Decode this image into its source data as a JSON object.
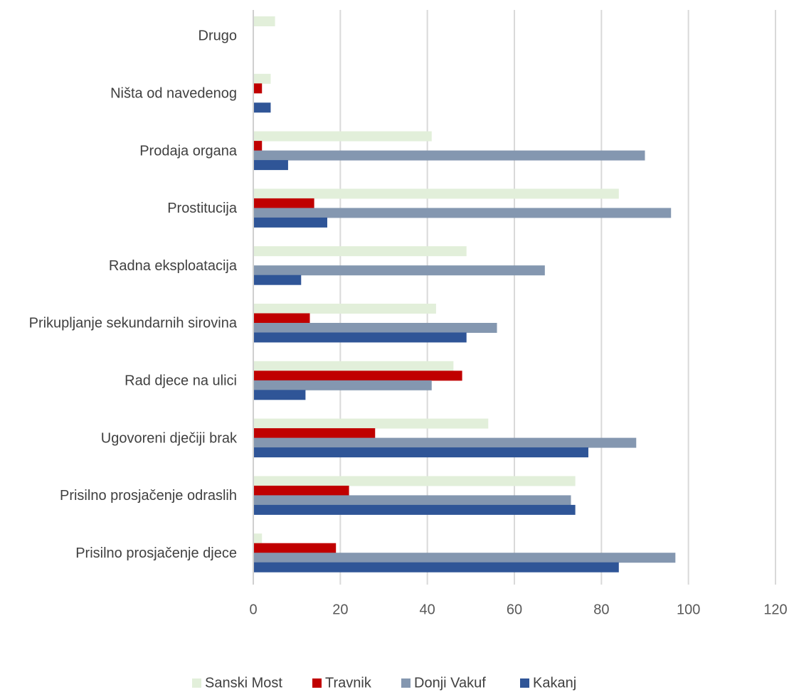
{
  "chart_data": {
    "type": "bar",
    "orientation": "horizontal",
    "categories": [
      "Drugo",
      "Ništa od navedenog",
      "Prodaja organa",
      "Prostitucija",
      "Radna eksploatacija",
      "Prikupljanje sekundarnih sirovina",
      "Rad djece na ulici",
      "Ugovoreni dječiji brak",
      "Prisilno prosjačenje odraslih",
      "Prisilno prosjačenje djece"
    ],
    "series": [
      {
        "name": "Sanski Most",
        "color": "#e2efda",
        "values": [
          5,
          4,
          41,
          84,
          49,
          42,
          46,
          54,
          74,
          2
        ]
      },
      {
        "name": "Travnik",
        "color": "#c00000",
        "values": [
          0,
          2,
          2,
          14,
          0,
          13,
          48,
          28,
          22,
          19
        ]
      },
      {
        "name": "Donji Vakuf",
        "color": "#8497b0",
        "values": [
          0,
          0,
          90,
          96,
          67,
          56,
          41,
          88,
          73,
          97
        ]
      },
      {
        "name": "Kakanj",
        "color": "#2f5597",
        "values": [
          0,
          4,
          8,
          17,
          11,
          49,
          12,
          77,
          74,
          84
        ]
      }
    ],
    "x_ticks": [
      "0",
      "20",
      "40",
      "60",
      "80",
      "100",
      "120"
    ],
    "xlim": [
      0,
      120
    ],
    "grid": true,
    "legend_position": "bottom"
  }
}
